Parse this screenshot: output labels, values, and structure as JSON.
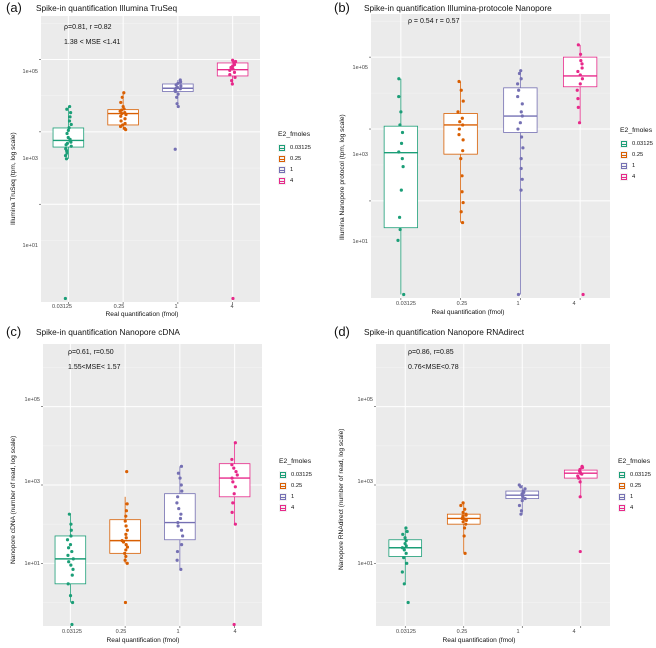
{
  "legend": {
    "title": "E2_fmoles",
    "entries": [
      "0.03125",
      "0.25",
      "1",
      "4"
    ],
    "colors": [
      "#1b9e77",
      "#d95f02",
      "#7570b3",
      "#e7298a"
    ]
  },
  "chart_data": [
    {
      "type": "box",
      "panel_label": "(a)",
      "title": "Spike-in quantification Illumina TruSeq",
      "stats": [
        "ρ=0.81, r =0.82",
        "1.38 < MSE <1.41"
      ],
      "xlabel": "Real quantification (fmol)",
      "ylabel": "Illumina TruSeq (tpm, log scale)",
      "categories": [
        "0.03125",
        "0.25",
        "1",
        "4"
      ],
      "yscale": "log10",
      "ylim_log10": [
        -1.7,
        6.2
      ],
      "yticks": [
        "1e+01",
        "1e+03",
        "1e+05"
      ],
      "boxes": [
        {
          "lower_whisker": 180,
          "q1": 380,
          "median": 580,
          "q3": 1280,
          "upper_whisker": 5000
        },
        {
          "lower_whisker": 1150,
          "q1": 1550,
          "median": 3200,
          "q3": 4100,
          "upper_whisker": 12000
        },
        {
          "lower_whisker": 5000,
          "q1": 13000,
          "median": 16000,
          "q3": 21000,
          "upper_whisker": 27000
        },
        {
          "lower_whisker": 21000,
          "q1": 35000,
          "median": 52000,
          "q3": 80000,
          "upper_whisker": 95000
        }
      ],
      "points": [
        [
          0.025,
          180,
          220,
          260,
          300,
          340,
          400,
          440,
          480,
          520,
          580,
          620,
          700,
          900,
          1100,
          1300,
          1600,
          2000,
          2600,
          3400,
          4200,
          5000
        ],
        [
          1150,
          1250,
          1400,
          1550,
          1700,
          2000,
          2300,
          2700,
          3000,
          3200,
          3400,
          3700,
          4000,
          4300,
          5000,
          6500,
          9000,
          12000
        ],
        [
          330,
          5000,
          6000,
          9000,
          11000,
          13000,
          14000,
          15500,
          16000,
          17000,
          18500,
          20000,
          22000,
          24000,
          27000
        ],
        [
          0.025,
          21000,
          26000,
          32000,
          38000,
          44000,
          50000,
          55000,
          60000,
          66000,
          72000,
          80000,
          88000,
          95000
        ]
      ]
    },
    {
      "type": "box",
      "panel_label": "(b)",
      "title": "Spike-in quantification Illumina-protocole Nanopore",
      "stats": [
        "ρ = 0.54 r = 0.57"
      ],
      "xlabel": "Real quantification (fmol)",
      "ylabel": "Illumina Nanopore protocol (tpm, log scale)",
      "categories": [
        "0.03125",
        "0.25",
        "1",
        "4"
      ],
      "yscale": "log10",
      "ylim_log10": [
        -1.7,
        6.2
      ],
      "yticks": [
        "1e+01",
        "1e+03",
        "1e+05"
      ],
      "boxes": [
        {
          "lower_whisker": 0.025,
          "q1": 1.8,
          "median": 220,
          "q3": 1200,
          "upper_whisker": 25000
        },
        {
          "lower_whisker": 2.5,
          "q1": 200,
          "median": 1300,
          "q3": 2700,
          "upper_whisker": 21000
        },
        {
          "lower_whisker": 0.025,
          "q1": 800,
          "median": 2300,
          "q3": 14000,
          "upper_whisker": 42000
        },
        {
          "lower_whisker": 1500,
          "q1": 15000,
          "median": 30000,
          "q3": 100000,
          "upper_whisker": 220000
        }
      ],
      "points": [
        [
          0.025,
          0.8,
          1.6,
          3.5,
          20,
          90,
          150,
          230,
          400,
          800,
          1300,
          3000,
          8000,
          25000
        ],
        [
          2.5,
          5,
          9,
          18,
          50,
          150,
          250,
          500,
          700,
          1000,
          1300,
          1600,
          2000,
          3000,
          6000,
          12000,
          21000
        ],
        [
          0.025,
          20,
          40,
          80,
          150,
          300,
          600,
          1000,
          1500,
          2300,
          3000,
          5000,
          8000,
          12000,
          18000,
          25000,
          35000,
          42000
        ],
        [
          0.025,
          1500,
          4000,
          7000,
          12000,
          18000,
          25000,
          32000,
          40000,
          50000,
          65000,
          80000,
          120000,
          220000
        ]
      ]
    },
    {
      "type": "box",
      "panel_label": "(c)",
      "title": "Spike-in quantification Nanopore cDNA",
      "stats": [
        "ρ=0.61, r=0.50",
        "1.55<MSE< 1.57"
      ],
      "xlabel": "Real quantification (fmol)",
      "ylabel": "Nanopore cDNA (number of read, log scale)",
      "categories": [
        "0.03125",
        "0.25",
        "1",
        "4"
      ],
      "yscale": "log10",
      "ylim_log10": [
        -0.6,
        6.6
      ],
      "yticks": [
        "1e+01",
        "1e+03",
        "1e+05"
      ],
      "boxes": [
        {
          "lower_whisker": 1,
          "q1": 3,
          "median": 13,
          "q3": 50,
          "upper_whisker": 180
        },
        {
          "lower_whisker": 10,
          "q1": 18,
          "median": 38,
          "q3": 130,
          "upper_whisker": 500
        },
        {
          "lower_whisker": 7,
          "q1": 40,
          "median": 110,
          "q3": 600,
          "upper_whisker": 3000
        },
        {
          "lower_whisker": 100,
          "q1": 500,
          "median": 1500,
          "q3": 3500,
          "upper_whisker": 12000
        }
      ],
      "points": [
        [
          0.2,
          1,
          1.5,
          3,
          5,
          7,
          9,
          11,
          13,
          16,
          20,
          25,
          30,
          40,
          50,
          70,
          100,
          180
        ],
        [
          1,
          10,
          12,
          15,
          18,
          22,
          26,
          30,
          35,
          38,
          45,
          55,
          70,
          90,
          120,
          160,
          220,
          330,
          2200
        ],
        [
          7,
          12,
          20,
          30,
          50,
          70,
          90,
          110,
          140,
          180,
          250,
          350,
          500,
          700,
          1000,
          1500,
          2000,
          3000
        ],
        [
          0.2,
          100,
          200,
          350,
          600,
          900,
          1200,
          1500,
          1800,
          2200,
          2700,
          3300,
          4500,
          12000
        ]
      ]
    },
    {
      "type": "box",
      "panel_label": "(d)",
      "title": "Spike-in quantification Nanopore RNAdirect",
      "stats": [
        "ρ=0.86, r=0.85",
        "0.76<MSE<0.78"
      ],
      "xlabel": "Real quantification (fmol)",
      "ylabel": "Nanopore RNAdirect (number of read, log scale)",
      "categories": [
        "0.03125",
        "0.25",
        "1",
        "4"
      ],
      "yscale": "log10",
      "ylim_log10": [
        -0.6,
        6.6
      ],
      "yticks": [
        "1e+01",
        "1e+03",
        "1e+05"
      ],
      "boxes": [
        {
          "lower_whisker": 3,
          "q1": 15,
          "median": 25,
          "q3": 40,
          "upper_whisker": 80
        },
        {
          "lower_whisker": 18,
          "q1": 100,
          "median": 140,
          "q3": 180,
          "upper_whisker": 350
        },
        {
          "lower_whisker": 180,
          "q1": 450,
          "median": 550,
          "q3": 700,
          "upper_whisker": 1000
        },
        {
          "lower_whisker": 500,
          "q1": 1500,
          "median": 2000,
          "q3": 2400,
          "upper_whisker": 3000
        }
      ],
      "points": [
        [
          1,
          3,
          6,
          10,
          14,
          18,
          22,
          25,
          28,
          32,
          38,
          45,
          55,
          65,
          80
        ],
        [
          18,
          50,
          80,
          100,
          115,
          125,
          135,
          140,
          150,
          160,
          170,
          180,
          200,
          240,
          300,
          350
        ],
        [
          180,
          220,
          300,
          400,
          450,
          500,
          530,
          560,
          600,
          650,
          700,
          800,
          900,
          1000
        ],
        [
          20,
          500,
          1200,
          1500,
          1700,
          1900,
          2000,
          2100,
          2300,
          2500,
          2800,
          3000
        ]
      ]
    }
  ]
}
